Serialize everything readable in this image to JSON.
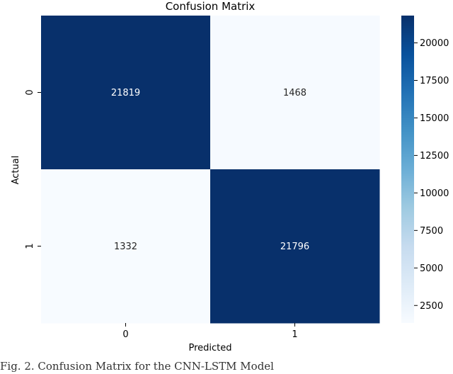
{
  "chart_data": {
    "type": "heatmap",
    "title": "Confusion Matrix",
    "xlabel": "Predicted",
    "ylabel": "Actual",
    "x_categories": [
      "0",
      "1"
    ],
    "y_categories": [
      "0",
      "1"
    ],
    "values": [
      [
        21819,
        1468
      ],
      [
        1332,
        21796
      ]
    ],
    "colormap": "Blues",
    "colorbar": {
      "range": [
        1332,
        21819
      ],
      "ticks": [
        2500,
        5000,
        7500,
        10000,
        12500,
        15000,
        17500,
        20000
      ]
    },
    "annotation_colors": {
      "dark": "#ffffff",
      "light": "#262626"
    }
  },
  "caption": "Fig. 2. Confusion Matrix for the CNN-LSTM Model"
}
